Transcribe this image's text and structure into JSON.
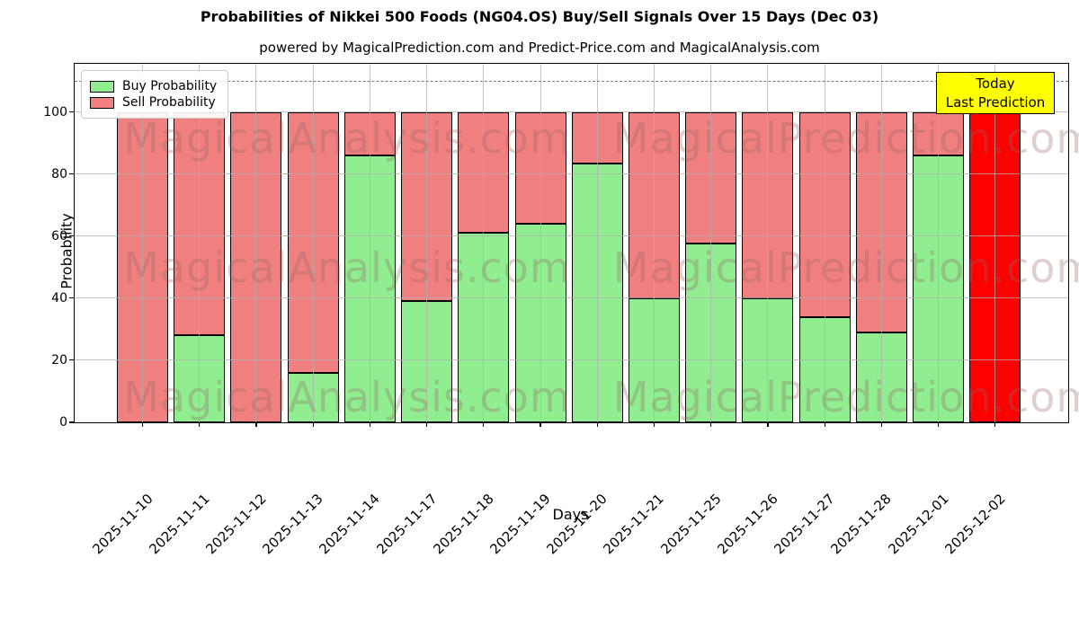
{
  "title": "Probabilities of Nikkei 500 Foods (NG04.OS) Buy/Sell Signals Over 15 Days (Dec 03)",
  "subtitle": "powered by MagicalPrediction.com and Predict-Price.com and MagicalAnalysis.com",
  "legend": {
    "buy_label": "Buy Probability",
    "sell_label": "Sell Probability"
  },
  "annotation": {
    "line1": "Today",
    "line2": "Last Prediction"
  },
  "watermarks": [
    "MagicalAnalysis.com",
    "MagicalPrediction.com"
  ],
  "colors": {
    "buy": "#90ee90",
    "sell": "#f08080",
    "last_prediction": "#ff0000",
    "annotation_bg": "#ffff00",
    "grid": "rgba(176,176,176,0.75)",
    "threshold": "#7a7a7a"
  },
  "chart_data": {
    "type": "bar",
    "stacked": true,
    "title": "Probabilities of Nikkei 500 Foods (NG04.OS) Buy/Sell Signals Over 15 Days (Dec 03)",
    "xlabel": "Days",
    "ylabel": "Probability",
    "categories": [
      "2025-11-10",
      "2025-11-11",
      "2025-11-12",
      "2025-11-13",
      "2025-11-14",
      "2025-11-17",
      "2025-11-18",
      "2025-11-19",
      "2025-11-20",
      "2025-11-21",
      "2025-11-25",
      "2025-11-26",
      "2025-11-27",
      "2025-11-28",
      "2025-12-01",
      "2025-12-02"
    ],
    "series": [
      {
        "name": "Buy Probability",
        "color": "#90ee90",
        "values": [
          0,
          28,
          0,
          16,
          86,
          39,
          61,
          64,
          83.5,
          40,
          57.5,
          40,
          34,
          29,
          86,
          0
        ]
      },
      {
        "name": "Sell Probability",
        "color": "#f08080",
        "values": [
          100,
          72,
          100,
          84,
          14,
          61,
          39,
          36,
          16.5,
          60,
          42.5,
          60,
          66,
          71,
          14,
          100
        ]
      }
    ],
    "highlight_last_bar": {
      "index": 15,
      "color": "#ff0000",
      "label": "Today / Last Prediction"
    },
    "threshold_line": {
      "y": 110,
      "style": "dashed",
      "color": "#7a7a7a"
    },
    "yticks": [
      0,
      20,
      40,
      60,
      80,
      100
    ],
    "ylim": [
      0,
      115.5
    ],
    "grid": true,
    "legend_position": "upper-left"
  }
}
